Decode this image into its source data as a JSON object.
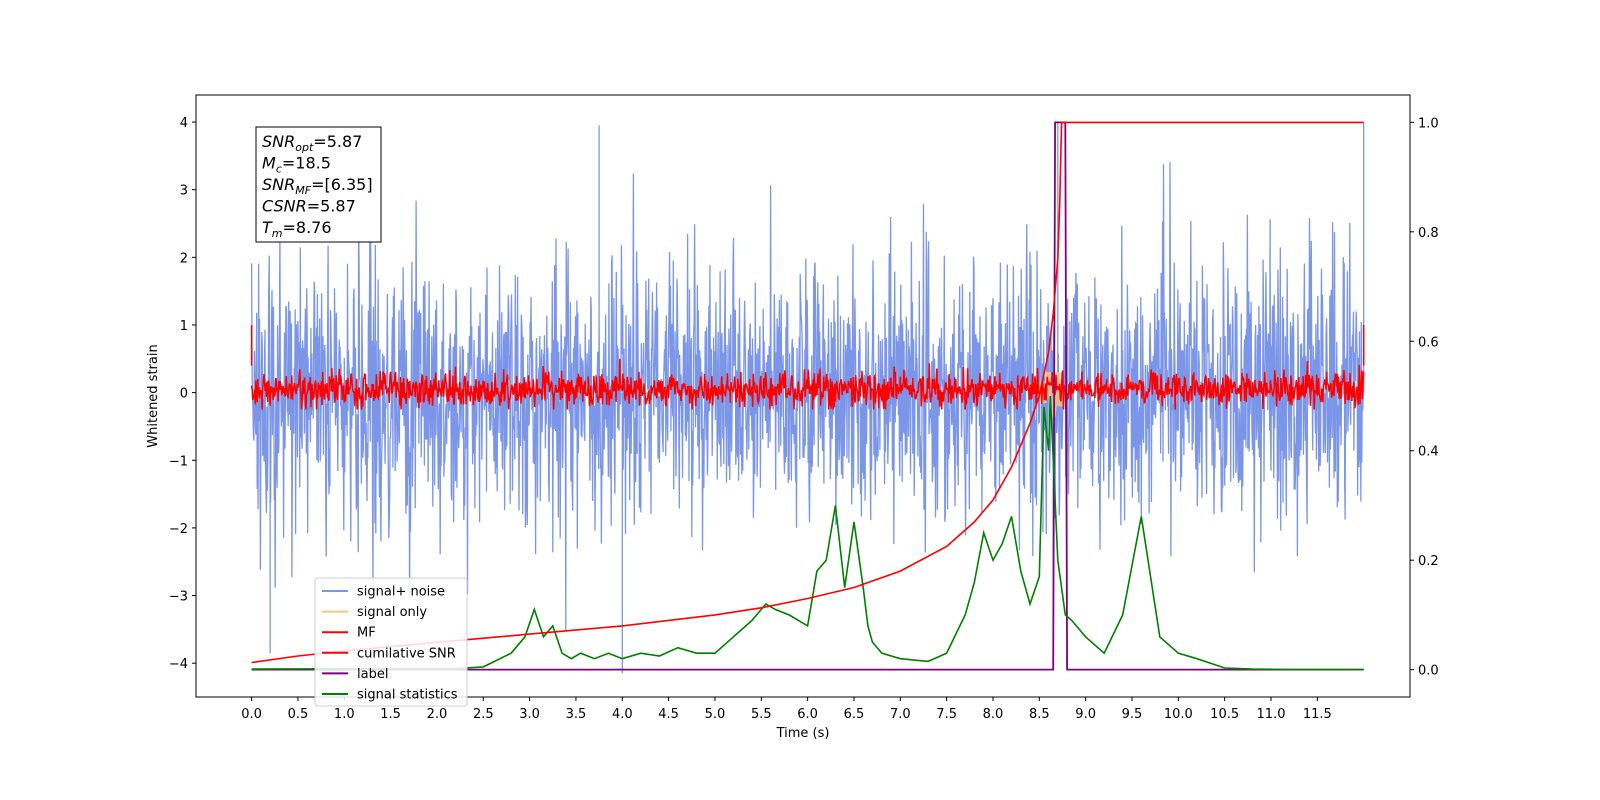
{
  "chart_data": {
    "type": "line",
    "xlabel": "Time (s)",
    "ylabel": "Whitened strain",
    "xlim": [
      -0.6,
      12.5
    ],
    "ylim": [
      -4.5,
      4.4
    ],
    "y2lim": [
      -0.05,
      1.05
    ],
    "grid": false,
    "legend_placement": "lower-left",
    "x_ticks": [
      "0.0",
      "0.5",
      "1.0",
      "1.5",
      "2.0",
      "2.5",
      "3.0",
      "3.5",
      "4.0",
      "4.5",
      "5.0",
      "5.5",
      "6.0",
      "6.5",
      "7.0",
      "7.5",
      "8.0",
      "8.5",
      "9.0",
      "9.5",
      "10.0",
      "10.5",
      "11.0",
      "11.5"
    ],
    "y_ticks": [
      "4",
      "3",
      "2",
      "1",
      "0",
      "−1",
      "−2",
      "−3",
      "−4"
    ],
    "y2_ticks": [
      "1.0",
      "0.8",
      "0.6",
      "0.4",
      "0.2",
      "0.0"
    ],
    "annotation": [
      {
        "name": "SNR",
        "sub": "opt",
        "value": "=5.87"
      },
      {
        "name": "M",
        "sub": "c",
        "value": "=18.5"
      },
      {
        "name": "SNR",
        "sub": "MF",
        "value": "=[6.35]"
      },
      {
        "name": "CSNR",
        "sub": "",
        "value": "=5.87"
      },
      {
        "name": "T",
        "sub": "m",
        "value": "=8.76"
      }
    ],
    "legend": [
      {
        "label": "signal+ noise",
        "color": "#7b96e8"
      },
      {
        "label": "signal only",
        "color": "#f5c87a"
      },
      {
        "label": "MF",
        "color": "#ff0000"
      },
      {
        "label": "cumilative SNR",
        "color": "#ff0000"
      },
      {
        "label": "label",
        "color": "#800080"
      },
      {
        "label": "signal statistics",
        "color": "#008000"
      }
    ],
    "series": [
      {
        "name": "signal+ noise",
        "axis": "left",
        "color": "#7b96e8",
        "x_range": [
          0.0,
          12.0
        ],
        "approx_amplitude_range": [
          -3.9,
          4.0
        ],
        "peaks": [
          [
            3.75,
            3.95
          ],
          [
            8.7,
            4.0
          ],
          [
            12.0,
            4.0
          ],
          [
            0.2,
            -3.85
          ],
          [
            4.0,
            -4.15
          ],
          [
            8.65,
            -3.85
          ]
        ]
      },
      {
        "name": "signal only",
        "axis": "left",
        "color": "#f5c87a",
        "x": [
          8.4,
          8.5,
          8.55,
          8.6,
          8.65,
          8.7,
          8.72,
          8.75,
          8.8
        ],
        "y": [
          0.0,
          0.1,
          -0.15,
          0.3,
          -0.35,
          0.3,
          -0.2,
          0.1,
          0.0
        ]
      },
      {
        "name": "MF",
        "axis": "left",
        "color": "#ff0000",
        "x_range": [
          0.0,
          12.0
        ],
        "approx_amplitude_range": [
          -0.25,
          0.55
        ],
        "edge_values": [
          [
            0.0,
            1.0
          ],
          [
            12.0,
            1.0
          ]
        ]
      },
      {
        "name": "cumilative SNR",
        "axis": "right",
        "color": "#ff0000",
        "x": [
          0.0,
          0.5,
          1.0,
          2.0,
          3.0,
          4.0,
          5.0,
          5.5,
          6.0,
          6.5,
          7.0,
          7.5,
          7.8,
          8.0,
          8.2,
          8.4,
          8.5,
          8.6,
          8.65,
          8.7,
          8.72,
          8.74,
          8.76,
          12.0
        ],
        "y": [
          0.013,
          0.025,
          0.034,
          0.05,
          0.065,
          0.08,
          0.1,
          0.113,
          0.13,
          0.15,
          0.18,
          0.225,
          0.27,
          0.31,
          0.37,
          0.45,
          0.5,
          0.58,
          0.65,
          0.75,
          0.85,
          1.0,
          1.0,
          1.0
        ]
      },
      {
        "name": "label",
        "axis": "right",
        "color": "#800080",
        "x": [
          0.0,
          8.65,
          8.67,
          8.78,
          8.8,
          12.0
        ],
        "y": [
          0.0,
          0.0,
          1.0,
          1.0,
          0.0,
          0.0
        ]
      },
      {
        "name": "signal statistics",
        "axis": "right",
        "color": "#008000",
        "x": [
          0.0,
          2.2,
          2.5,
          2.8,
          2.95,
          3.05,
          3.15,
          3.25,
          3.35,
          3.45,
          3.55,
          3.7,
          3.85,
          4.0,
          4.2,
          4.4,
          4.6,
          4.8,
          5.0,
          5.2,
          5.4,
          5.55,
          5.65,
          5.8,
          6.0,
          6.1,
          6.2,
          6.3,
          6.4,
          6.5,
          6.6,
          6.65,
          6.7,
          6.8,
          7.0,
          7.3,
          7.5,
          7.7,
          7.8,
          7.9,
          8.0,
          8.1,
          8.2,
          8.3,
          8.4,
          8.5,
          8.55,
          8.6,
          8.62,
          8.7,
          8.78,
          8.85,
          9.0,
          9.2,
          9.4,
          9.6,
          9.8,
          10.0,
          10.2,
          10.5,
          10.8,
          11.2,
          12.0
        ],
        "y": [
          0.001,
          0.002,
          0.005,
          0.03,
          0.06,
          0.11,
          0.06,
          0.08,
          0.03,
          0.02,
          0.03,
          0.02,
          0.03,
          0.02,
          0.03,
          0.025,
          0.04,
          0.03,
          0.03,
          0.06,
          0.09,
          0.12,
          0.11,
          0.1,
          0.08,
          0.18,
          0.2,
          0.3,
          0.15,
          0.27,
          0.15,
          0.08,
          0.05,
          0.03,
          0.02,
          0.015,
          0.03,
          0.1,
          0.16,
          0.25,
          0.2,
          0.23,
          0.28,
          0.18,
          0.12,
          0.17,
          0.48,
          0.4,
          0.5,
          0.2,
          0.1,
          0.09,
          0.06,
          0.03,
          0.1,
          0.28,
          0.06,
          0.03,
          0.02,
          0.003,
          0.001,
          0.0,
          0.0
        ]
      }
    ]
  }
}
